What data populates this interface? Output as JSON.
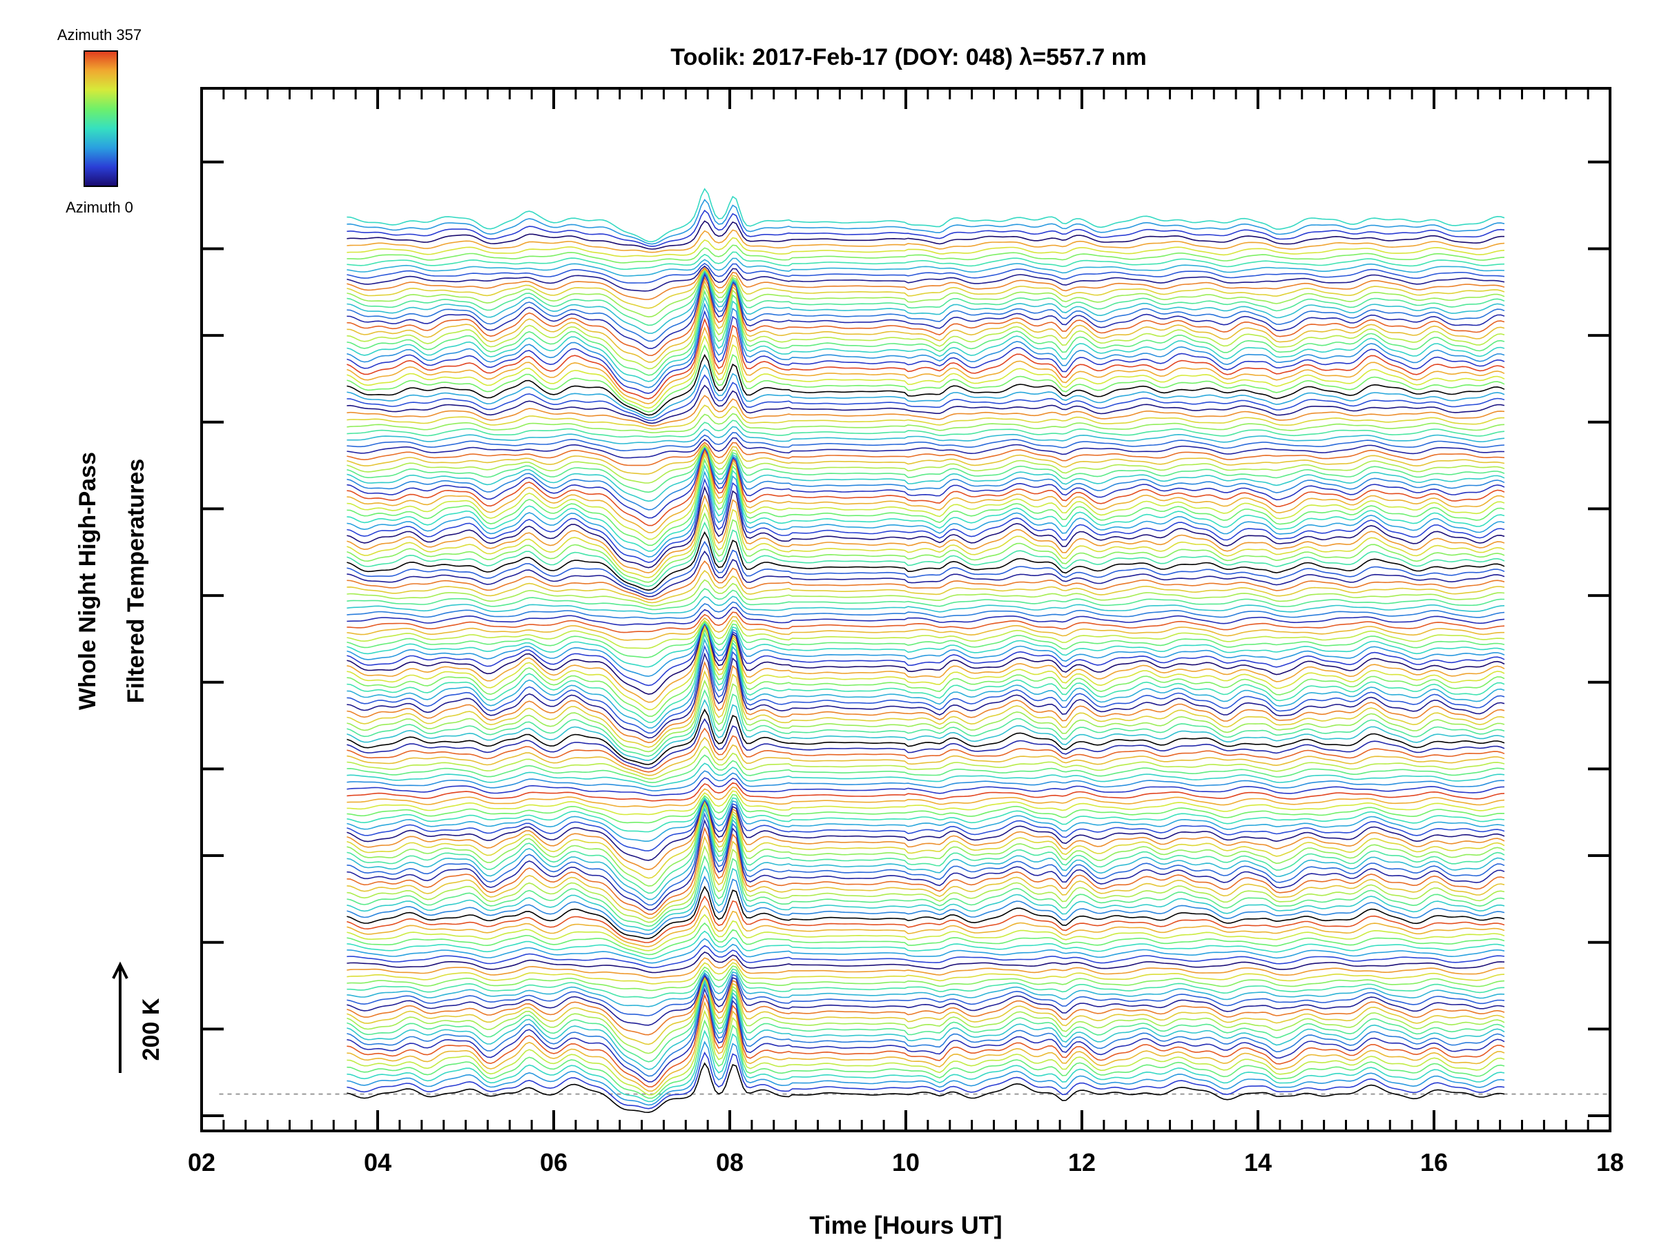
{
  "chart_data": {
    "type": "line",
    "title": "Toolik: 2017-Feb-17 (DOY: 048) λ=557.7 nm",
    "xlabel": "Time [Hours UT]",
    "ylabel_line1": "Whole Night High-Pass",
    "ylabel_line2": "Filtered Temperatures",
    "scale_label": "200 K",
    "xlim": [
      2,
      18
    ],
    "x_ticks": [
      "02",
      "04",
      "06",
      "08",
      "10",
      "12",
      "14",
      "16",
      "18"
    ],
    "x_tick_values": [
      2,
      4,
      6,
      8,
      10,
      12,
      14,
      16,
      18
    ],
    "time_start": 3.65,
    "time_end": 16.8,
    "n_traces": 150,
    "offset_per_trace_K": 27,
    "ylim_K": [
      -170,
      4640
    ],
    "y_major_tick_K": [
      -100,
      300,
      700,
      1100,
      1500,
      1900,
      2300,
      2700,
      3100,
      3500,
      3900,
      4300
    ],
    "colorbar": {
      "top_label": "Azimuth 357",
      "bottom_label": "Azimuth 0",
      "colors": [
        "#1a0a6e",
        "#2a3ed6",
        "#2aa0e0",
        "#36e0c0",
        "#6ef06a",
        "#d6ea3a",
        "#f0a830",
        "#e03a1e"
      ]
    },
    "traces_description": "Stacked high-pass filtered temperature time series, one per azimuth (0-357 deg), offset vertically; dashed baseline at 0 K",
    "key_features": [
      {
        "time": 7.1,
        "feature": "deep trough"
      },
      {
        "time": 7.72,
        "feature": "sharp peak"
      },
      {
        "time": 8.05,
        "feature": "sharp peak"
      },
      {
        "time": 11.8,
        "feature": "dip"
      },
      {
        "time": 14.2,
        "feature": "dip"
      }
    ]
  }
}
